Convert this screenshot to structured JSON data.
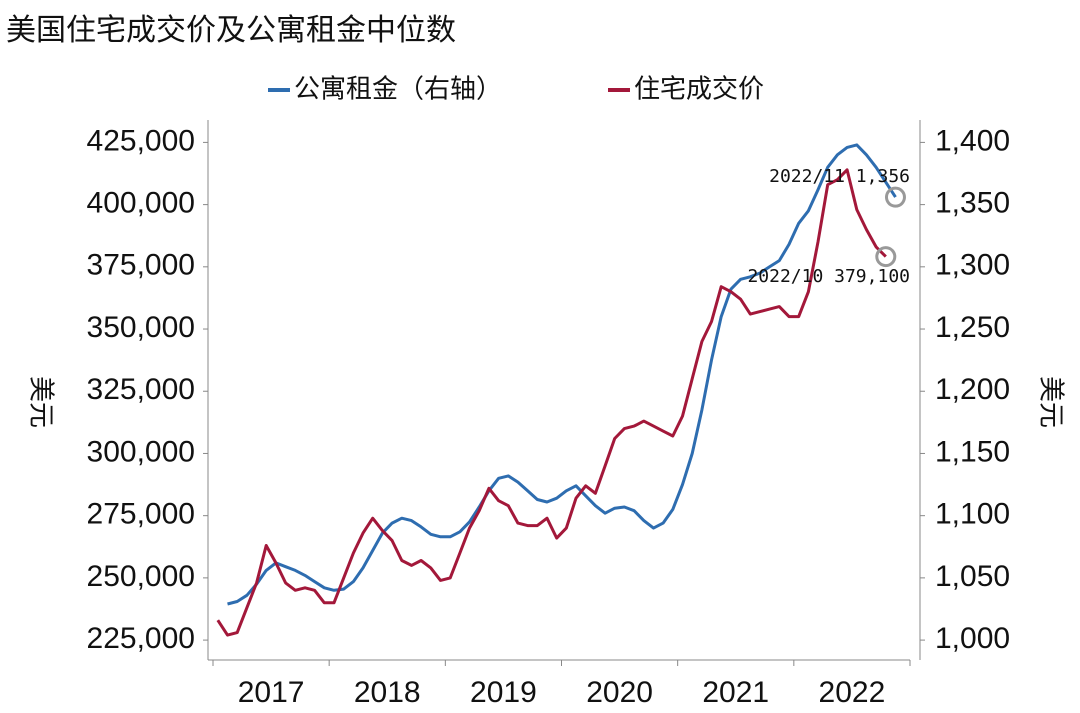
{
  "chart_data": {
    "type": "line",
    "title": "美国住宅成交价及公寓租金中位数",
    "y_label": "美元",
    "y2_label": "美元",
    "categories": [
      null,
      null,
      null,
      null,
      null,
      null,
      "2017",
      null,
      null,
      null,
      null,
      null,
      null,
      null,
      null,
      null,
      null,
      null,
      "2018",
      null,
      null,
      null,
      null,
      null,
      null,
      null,
      null,
      null,
      null,
      null,
      "2019",
      null,
      null,
      null,
      null,
      null,
      null,
      null,
      null,
      null,
      null,
      null,
      "2020",
      null,
      null,
      null,
      null,
      null,
      null,
      null,
      null,
      null,
      null,
      null,
      "2021",
      null,
      null,
      null,
      null,
      null,
      null,
      null,
      null,
      null,
      null,
      null,
      "2022",
      null,
      null,
      null,
      null
    ],
    "series": [
      {
        "name": "公寓租金（右轴）",
        "color": "#2e6db0",
        "axis": "y2",
        "values": [
          null,
          1029,
          1031,
          1036,
          1045,
          1056,
          1062,
          1059,
          1056,
          1052,
          1047,
          1042,
          1040,
          1041,
          1047,
          1058,
          1072,
          1086,
          1094,
          1098,
          1096,
          1091,
          1085,
          1083,
          1083,
          1087,
          1095,
          1107,
          1120,
          1130,
          1132,
          1127,
          1120,
          1113,
          1111,
          1114,
          1120,
          1124,
          1116,
          1108,
          1102,
          1106,
          1107,
          1104,
          1096,
          1090,
          1094,
          1105,
          1125,
          1150,
          1185,
          1225,
          1260,
          1282,
          1290,
          1292,
          1295,
          1300,
          1305,
          1318,
          1335,
          1345,
          1362,
          1380,
          1390,
          1396,
          1398,
          1390,
          1380,
          1368,
          1356
        ]
      },
      {
        "name": "住宅成交价",
        "color": "#a3183a",
        "values": [
          233000,
          227000,
          228000,
          238000,
          248000,
          263000,
          256000,
          248000,
          245000,
          246000,
          245000,
          240000,
          240000,
          250000,
          260000,
          268000,
          274000,
          269000,
          265000,
          257000,
          255000,
          257000,
          254000,
          249000,
          250000,
          260000,
          270000,
          277000,
          286000,
          281000,
          279000,
          272000,
          271000,
          271000,
          274000,
          266000,
          270000,
          282000,
          287000,
          284000,
          295000,
          306000,
          310000,
          311000,
          313000,
          311000,
          309000,
          307000,
          315000,
          330000,
          345000,
          353000,
          367000,
          365000,
          362000,
          356000,
          357000,
          358000,
          359000,
          355000,
          355000,
          365000,
          385000,
          408000,
          410000,
          414000,
          398000,
          390000,
          383000,
          379100,
          null
        ]
      }
    ],
    "annotations": [
      {
        "text": "2022/11 1,356"
      },
      {
        "text": "2022/10 379,100"
      }
    ],
    "ylim": [
      217000,
      434000
    ],
    "yticks": [
      {
        "value": 225000,
        "label": "225,000"
      },
      {
        "value": 250000,
        "label": "250,000"
      },
      {
        "value": 275000,
        "label": "275,000"
      },
      {
        "value": 300000,
        "label": "300,000"
      },
      {
        "value": 325000,
        "label": "325,000"
      },
      {
        "value": 350000,
        "label": "350,000"
      },
      {
        "value": 375000,
        "label": "375,000"
      },
      {
        "value": 400000,
        "label": "400,000"
      },
      {
        "value": 425000,
        "label": "425,000"
      }
    ],
    "y2lim": [
      984,
      1418
    ],
    "y2ticks": [
      {
        "value": 1000,
        "label": "1,000"
      },
      {
        "value": 1050,
        "label": "1,050"
      },
      {
        "value": 1100,
        "label": "1,100"
      },
      {
        "value": 1150,
        "label": "1,150"
      },
      {
        "value": 1200,
        "label": "1,200"
      },
      {
        "value": 1250,
        "label": "1,250"
      },
      {
        "value": 1300,
        "label": "1,300"
      },
      {
        "value": 1350,
        "label": "1,350"
      },
      {
        "value": 1400,
        "label": "1,400"
      }
    ],
    "grid": false
  }
}
